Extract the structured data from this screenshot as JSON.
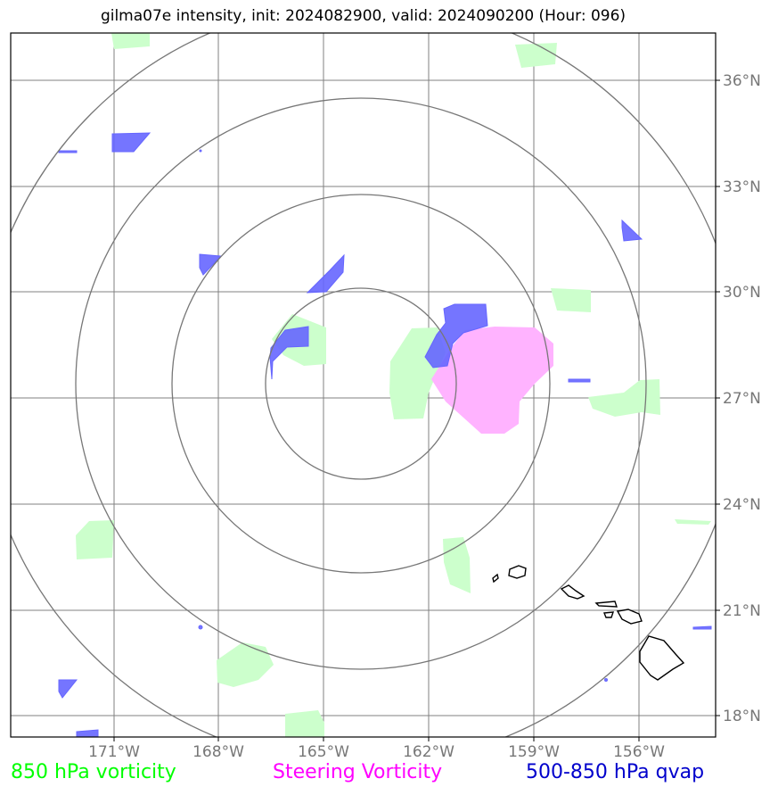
{
  "title": "gilma07e intensity, init: 2024082900, valid: 2024090200 (Hour: 096)",
  "longitude_labels": [
    "171°W",
    "168°W",
    "165°W",
    "162°W",
    "159°W",
    "156°W"
  ],
  "latitude_labels": [
    "36°N",
    "33°N",
    "30°N",
    "27°N",
    "24°N",
    "21°N",
    "18°N"
  ],
  "legend": {
    "vorticity_850": {
      "label": "850 hPa vorticity",
      "color": "#00ff00"
    },
    "steering_vorticity": {
      "label": "Steering Vorticity",
      "color": "#ff00ff"
    },
    "qvap": {
      "label": "500-850 hPa qvap",
      "color": "#0000cc"
    }
  },
  "colors": {
    "grid": "#808080",
    "range_rings": "#777777",
    "vorticity_fill": "#ccffcc",
    "steering_fill": "#ffb3ff",
    "qvap_fill": "#6666ff",
    "coastline": "#000000"
  }
}
